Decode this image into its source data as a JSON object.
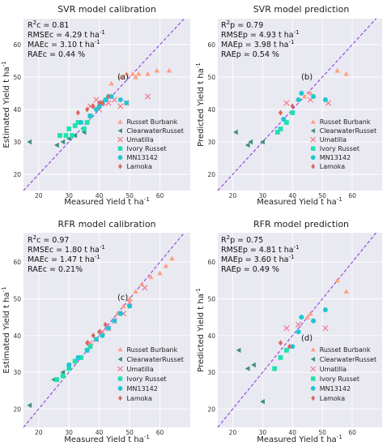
{
  "colors": {
    "background": "#e9e9f1",
    "grid": "#ffffff",
    "one_to_one": "#8a2be2",
    "Russet Burbank": "#ff9f80",
    "ClearwaterRusset": "#3f8f7d",
    "Umatilla": "#f07a8a",
    "Ivory Russet": "#1fe0b0",
    "MN13142": "#1ec7d2",
    "Lamoka": "#d9665f"
  },
  "legend_labels": [
    {
      "name": "Russet Burbank",
      "marker": "triangle-up"
    },
    {
      "name": "ClearwaterRusset",
      "marker": "triangle-left"
    },
    {
      "name": "Umatilla",
      "marker": "x"
    },
    {
      "name": "Ivory Russet",
      "marker": "square"
    },
    {
      "name": "MN13142",
      "marker": "circle"
    },
    {
      "name": "Lamoka",
      "marker": "diamond"
    }
  ],
  "chart_data": [
    {
      "type": "scatter",
      "panel": "(a)",
      "title": "SVR model calibration",
      "xlabel": "Measured Yield t ha",
      "ylabel": "Estimated Yield t ha",
      "unit_superscript": "-1",
      "xlim": [
        15,
        70
      ],
      "ylim": [
        15,
        68
      ],
      "xticks": [
        20,
        30,
        40,
        50,
        60
      ],
      "yticks": [
        20,
        30,
        40,
        50,
        60
      ],
      "stats": [
        {
          "prefix": "R",
          "sup": "2",
          "rest": "c = 0.81"
        },
        {
          "prefix": "RMSEc = 4.29 t ha",
          "sup": "-1",
          "rest": ""
        },
        {
          "prefix": "MAEc = 3.10 t ha",
          "sup": "-1",
          "rest": ""
        },
        {
          "prefix": "RAEc = 0.44 %",
          "sup": "",
          "rest": ""
        }
      ],
      "series": [
        {
          "name": "Russet Burbank",
          "x": [
            47,
            49,
            51,
            53,
            56,
            59,
            63,
            44,
            52
          ],
          "y": [
            50,
            51,
            51,
            51,
            51,
            52,
            52,
            48,
            50
          ]
        },
        {
          "name": "ClearwaterRusset",
          "x": [
            17,
            26,
            28,
            30,
            32,
            35
          ],
          "y": [
            30,
            29,
            30,
            31,
            32,
            33
          ]
        },
        {
          "name": "Umatilla",
          "x": [
            37,
            39,
            41,
            45,
            47,
            49,
            56,
            43,
            40
          ],
          "y": [
            41,
            43,
            42,
            43,
            41,
            42,
            44,
            42,
            40
          ]
        },
        {
          "name": "Ivory Russet",
          "x": [
            27,
            29,
            30,
            31,
            32,
            33,
            35,
            36,
            37
          ],
          "y": [
            32,
            32,
            34,
            32,
            35,
            36,
            34,
            36,
            38
          ]
        },
        {
          "name": "MN13142",
          "x": [
            34,
            37,
            39,
            40,
            41,
            42,
            43,
            44,
            47,
            49
          ],
          "y": [
            36,
            38,
            40,
            41,
            42,
            43,
            44,
            44,
            43,
            42
          ]
        },
        {
          "name": "Lamoka",
          "x": [
            33,
            36,
            38,
            40,
            41,
            43
          ],
          "y": [
            39,
            40,
            41,
            42,
            42,
            44
          ]
        }
      ]
    },
    {
      "type": "scatter",
      "panel": "(b)",
      "title": "SVR model prediction",
      "xlabel": "Measured Yield t ha",
      "ylabel": "Predicted Yield t ha",
      "unit_superscript": "-1",
      "xlim": [
        15,
        70
      ],
      "ylim": [
        15,
        68
      ],
      "xticks": [
        20,
        30,
        40,
        50,
        60
      ],
      "yticks": [
        20,
        30,
        40,
        50,
        60
      ],
      "stats": [
        {
          "prefix": "R",
          "sup": "2",
          "rest": "p = 0.79"
        },
        {
          "prefix": "RMSEp = 4.93 t ha",
          "sup": "-1",
          "rest": ""
        },
        {
          "prefix": "MAEp = 3.98 t ha",
          "sup": "-1",
          "rest": ""
        },
        {
          "prefix": "RAEp = 0.54 %",
          "sup": "",
          "rest": ""
        }
      ],
      "series": [
        {
          "name": "Russet Burbank",
          "x": [
            44,
            46,
            55,
            58
          ],
          "y": [
            44,
            45,
            52,
            51
          ]
        },
        {
          "name": "ClearwaterRusset",
          "x": [
            21,
            25,
            26,
            30
          ],
          "y": [
            33,
            29,
            30,
            30
          ]
        },
        {
          "name": "Umatilla",
          "x": [
            38,
            46,
            52
          ],
          "y": [
            42,
            43,
            42
          ]
        },
        {
          "name": "Ivory Russet",
          "x": [
            35,
            36,
            38,
            40
          ],
          "y": [
            33,
            34,
            36,
            39
          ]
        },
        {
          "name": "MN13142",
          "x": [
            37,
            42,
            43,
            47,
            51
          ],
          "y": [
            37,
            43,
            45,
            44,
            43
          ]
        },
        {
          "name": "Lamoka",
          "x": [
            36,
            40
          ],
          "y": [
            39,
            41
          ]
        }
      ]
    },
    {
      "type": "scatter",
      "panel": "(c)",
      "title": "RFR model calibration",
      "xlabel": "Measured Yield t ha",
      "ylabel": "Estimated Yield t ha",
      "unit_superscript": "-1",
      "xlim": [
        15,
        70
      ],
      "ylim": [
        15,
        68
      ],
      "xticks": [
        20,
        30,
        40,
        50,
        60
      ],
      "yticks": [
        20,
        30,
        40,
        50,
        60
      ],
      "stats": [
        {
          "prefix": "R",
          "sup": "2",
          "rest": "c = 0.97"
        },
        {
          "prefix": "RMSEc = 1.80 t ha",
          "sup": "-1",
          "rest": ""
        },
        {
          "prefix": "MAEc = 1.47 t ha",
          "sup": "-1",
          "rest": ""
        },
        {
          "prefix": "RAEc = 0.21%",
          "sup": "",
          "rest": ""
        }
      ],
      "series": [
        {
          "name": "Russet Burbank",
          "x": [
            46,
            48,
            50,
            52,
            54,
            57,
            60,
            62,
            64
          ],
          "y": [
            46,
            48,
            50,
            52,
            54,
            56,
            57,
            59,
            61
          ]
        },
        {
          "name": "ClearwaterRusset",
          "x": [
            17,
            25,
            28,
            30,
            32
          ],
          "y": [
            21,
            28,
            30,
            32,
            33
          ]
        },
        {
          "name": "Umatilla",
          "x": [
            37,
            39,
            41,
            43,
            45,
            48,
            55,
            50
          ],
          "y": [
            38,
            39,
            41,
            42,
            44,
            46,
            53,
            49
          ]
        },
        {
          "name": "Ivory Russet",
          "x": [
            26,
            28,
            30,
            32,
            34,
            36,
            37
          ],
          "y": [
            28,
            29,
            31,
            33,
            34,
            36,
            37
          ]
        },
        {
          "name": "MN13142",
          "x": [
            30,
            33,
            36,
            39,
            41,
            43,
            45,
            47,
            50
          ],
          "y": [
            32,
            34,
            36,
            39,
            40,
            42,
            44,
            46,
            48
          ]
        },
        {
          "name": "Lamoka",
          "x": [
            36,
            38,
            40,
            42
          ],
          "y": [
            38,
            40,
            41,
            43
          ]
        }
      ]
    },
    {
      "type": "scatter",
      "panel": "(d)",
      "title": "RFR model prediction",
      "xlabel": "Measured Yield t ha",
      "ylabel": "Predicted Yield t ha",
      "unit_superscript": "-1",
      "xlim": [
        15,
        70
      ],
      "ylim": [
        15,
        68
      ],
      "xticks": [
        20,
        30,
        40,
        50,
        60
      ],
      "yticks": [
        20,
        30,
        40,
        50,
        60
      ],
      "stats": [
        {
          "prefix": "R",
          "sup": "2",
          "rest": "p = 0.75"
        },
        {
          "prefix": "RMSEp = 4.81 t ha",
          "sup": "-1",
          "rest": ""
        },
        {
          "prefix": "MAEp = 3.60 t ha",
          "sup": "-1",
          "rest": ""
        },
        {
          "prefix": "RAEp = 0.49 %",
          "sup": "",
          "rest": ""
        }
      ],
      "series": [
        {
          "name": "Russet Burbank",
          "x": [
            45,
            46,
            55,
            58
          ],
          "y": [
            45,
            46,
            55,
            52
          ]
        },
        {
          "name": "ClearwaterRusset",
          "x": [
            22,
            25,
            27,
            30
          ],
          "y": [
            36,
            31,
            32,
            22
          ]
        },
        {
          "name": "Umatilla",
          "x": [
            38,
            42,
            51
          ],
          "y": [
            42,
            43,
            42
          ]
        },
        {
          "name": "Ivory Russet",
          "x": [
            34,
            36,
            38
          ],
          "y": [
            31,
            34,
            36
          ]
        },
        {
          "name": "MN13142",
          "x": [
            40,
            42,
            43,
            47,
            51
          ],
          "y": [
            37,
            41,
            45,
            44,
            47
          ]
        },
        {
          "name": "Lamoka",
          "x": [
            36,
            39
          ],
          "y": [
            38,
            37
          ]
        }
      ]
    }
  ]
}
